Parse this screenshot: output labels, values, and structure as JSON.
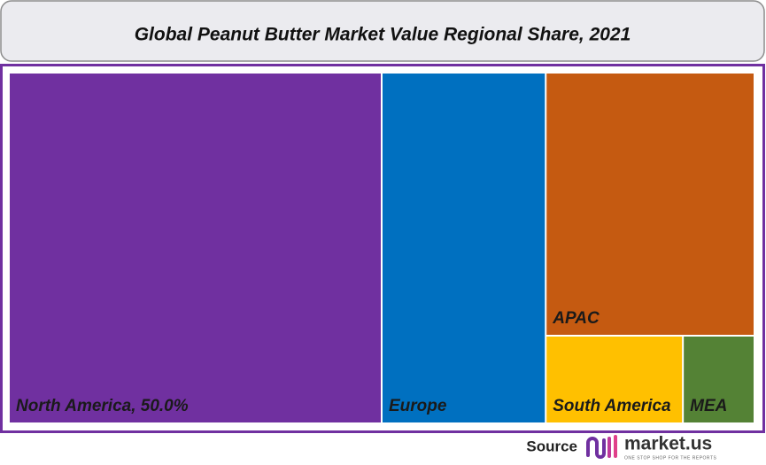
{
  "chart_data": {
    "type": "treemap",
    "title": "Global Peanut Butter Market Value Regional Share, 2021",
    "categories": [
      "North America, 50.0%",
      "Europe",
      "APAC",
      "South America",
      "MEA"
    ],
    "values": [
      50.0,
      22,
      21,
      4.6,
      2.4
    ],
    "colors": [
      "#7030a0",
      "#0070c0",
      "#c55a11",
      "#ffc000",
      "#548235"
    ]
  },
  "footer": {
    "source": "Source",
    "logo_text": "market.us",
    "logo_tagline": "ONE STOP SHOP FOR THE REPORTS"
  }
}
